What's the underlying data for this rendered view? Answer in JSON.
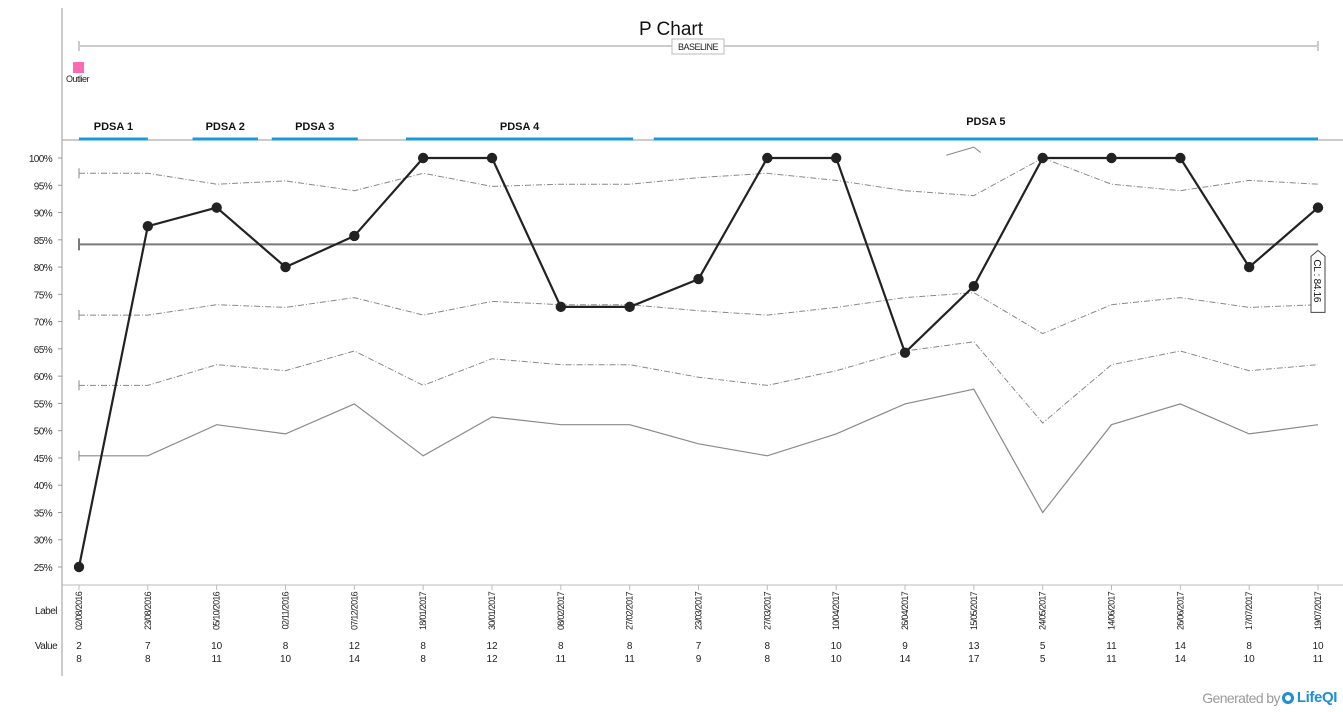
{
  "footer": {
    "generated_by": "Generated by",
    "brand": "LifeQI"
  },
  "chart_data": {
    "type": "line",
    "title": "P Chart",
    "phase_label": "BASELINE",
    "legend": {
      "outlier_label": "Outlier",
      "outlier_color": "#ff69b4"
    },
    "row_labels": {
      "label": "Label",
      "value": "Value"
    },
    "cl_label": "CL : 84.16",
    "center_line": 84.16,
    "y_ticks": [
      "100%",
      "95%",
      "90%",
      "85%",
      "80%",
      "75%",
      "70%",
      "65%",
      "60%",
      "55%",
      "50%",
      "45%",
      "40%",
      "35%",
      "30%",
      "25%"
    ],
    "ylim": [
      25,
      100
    ],
    "labels": [
      "02/08/2016",
      "23/08/2016",
      "05/10/2016",
      "02/11/2016",
      "07/12/2016",
      "18/01/2017",
      "30/01/2017",
      "08/02/2017",
      "27/02/2017",
      "23/03/2017",
      "27/03/2017",
      "10/04/2017",
      "26/04/2017",
      "15/05/2017",
      "24/05/2017",
      "14/06/2017",
      "26/06/2017",
      "17/07/2017",
      "19/07/2017"
    ],
    "numerators": [
      2,
      7,
      10,
      8,
      12,
      8,
      12,
      8,
      8,
      7,
      8,
      10,
      9,
      13,
      5,
      11,
      14,
      8,
      10
    ],
    "denominators": [
      8,
      8,
      11,
      10,
      14,
      8,
      12,
      11,
      11,
      9,
      8,
      10,
      14,
      17,
      5,
      11,
      14,
      10,
      11
    ],
    "values": [
      25,
      87.5,
      90.9,
      80,
      85.7,
      100,
      100,
      72.7,
      72.7,
      77.8,
      100,
      100,
      64.3,
      76.5,
      100,
      100,
      100,
      80,
      90.9
    ],
    "ucl_3sigma": [
      97.2,
      97.2,
      95.2,
      95.8,
      94,
      97.2,
      94.8,
      95.2,
      95.2,
      96.4,
      97.2,
      95.9,
      94,
      93.1,
      100,
      95.2,
      94,
      95.9,
      95.2
    ],
    "ucl_3sigma_over": [
      null,
      null,
      null,
      null,
      null,
      null,
      null,
      null,
      null,
      null,
      null,
      null,
      null,
      102,
      null,
      null,
      null,
      null,
      null
    ],
    "lcl_1sigma": [
      71.2,
      71.2,
      73.1,
      72.6,
      74.4,
      71.2,
      73.7,
      73.1,
      73.1,
      72.0,
      71.2,
      72.6,
      74.4,
      75.3,
      67.8,
      73.1,
      74.4,
      72.6,
      73.1
    ],
    "lcl_2sigma": [
      58.3,
      58.3,
      62.1,
      61.0,
      64.6,
      58.3,
      63.2,
      62.1,
      62.1,
      59.8,
      58.3,
      61.0,
      64.6,
      66.3,
      51.4,
      62.1,
      64.6,
      61.0,
      62.1
    ],
    "lcl_3sigma": [
      45.4,
      45.4,
      51.1,
      49.4,
      54.9,
      45.4,
      52.5,
      51.1,
      51.1,
      47.6,
      45.4,
      49.4,
      54.9,
      57.6,
      35.0,
      51.1,
      54.9,
      49.4,
      51.1
    ],
    "pdsa": [
      {
        "name": "PDSA 1",
        "start": 0,
        "end": 1
      },
      {
        "name": "PDSA 2",
        "start": 1.65,
        "end": 2.6
      },
      {
        "name": "PDSA 3",
        "start": 2.8,
        "end": 4.05
      },
      {
        "name": "PDSA 4",
        "start": 4.75,
        "end": 8.05
      },
      {
        "name": "PDSA 5",
        "start": 8.35,
        "end": 18
      }
    ],
    "colors": {
      "data": "#222222",
      "center": "#7a7a7a",
      "limits": "#888888",
      "pdsa": "#1a9ad6",
      "axis": "#999999"
    },
    "grid": false
  }
}
